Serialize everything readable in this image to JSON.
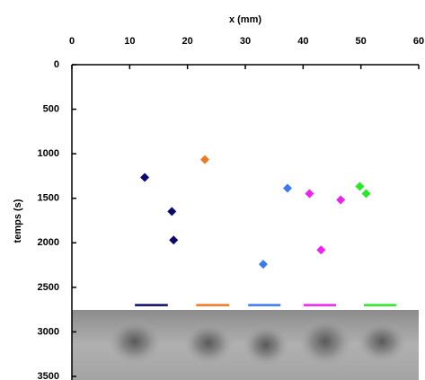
{
  "chart_data": {
    "type": "scatter",
    "x_label": "x (mm)",
    "y_label": "temps (s)",
    "xlim": [
      0,
      60
    ],
    "xticks": [
      0,
      10,
      20,
      30,
      40,
      50,
      60
    ],
    "ylim": [
      0,
      3500
    ],
    "yticks": [
      0,
      500,
      1000,
      1500,
      2000,
      2500,
      3000,
      3500
    ],
    "y_inverted": true,
    "x_axis_top": true,
    "series": [
      {
        "color": "#0a0a6e",
        "x": [
          12.6,
          17.3,
          17.6
        ],
        "values": [
          1266,
          1648,
          1970
        ],
        "range": [
          10.9,
          16.6
        ],
        "range_y": 2700
      },
      {
        "color": "#f07820",
        "x": [
          23.0
        ],
        "values": [
          1065
        ],
        "range": [
          21.5,
          27.2
        ],
        "range_y": 2700
      },
      {
        "color": "#3c78f0",
        "x": [
          33.1,
          37.3
        ],
        "values": [
          2241,
          1387
        ],
        "range": [
          30.5,
          36.1
        ],
        "range_y": 2700
      },
      {
        "color": "#f020f0",
        "x": [
          41.1,
          46.5,
          43.1
        ],
        "values": [
          1447,
          1518,
          2080
        ],
        "range": [
          40.1,
          45.7
        ],
        "range_y": 2700
      },
      {
        "color": "#28e828",
        "x": [
          49.8,
          50.9
        ],
        "values": [
          1367,
          1447
        ],
        "range": [
          50.5,
          56.1
        ],
        "range_y": 2700
      }
    ]
  }
}
